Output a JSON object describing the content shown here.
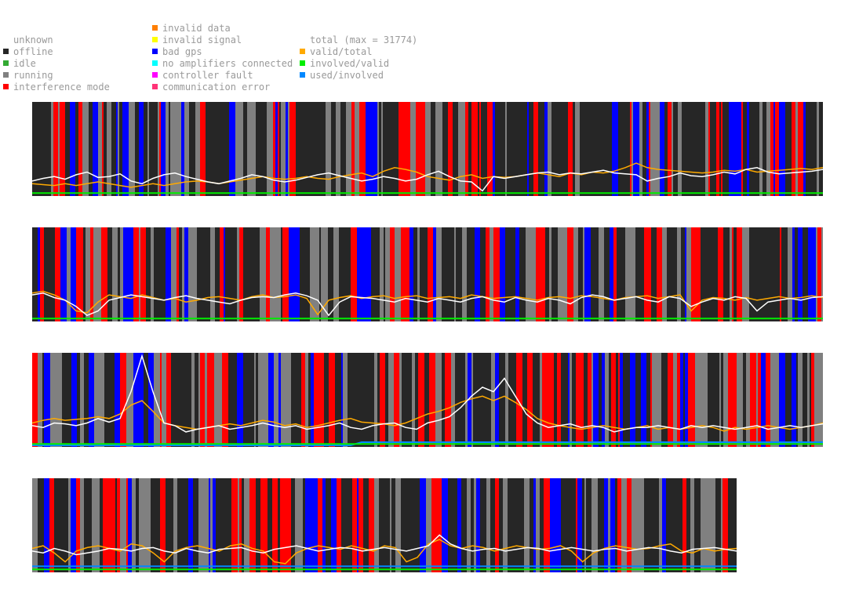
{
  "legend": {
    "status": [
      {
        "label": "unknown",
        "color": ""
      },
      {
        "label": "offline",
        "color": "#262626"
      },
      {
        "label": "idle",
        "color": "#33aa33"
      },
      {
        "label": "running",
        "color": "#808080"
      },
      {
        "label": "interference mode",
        "color": "#ff0000"
      }
    ],
    "faults": [
      {
        "label": "invalid data",
        "color": "#ff7f00"
      },
      {
        "label": "invalid signal",
        "color": "#ffff00"
      },
      {
        "label": "bad gps",
        "color": "#0000ff"
      },
      {
        "label": "no amplifiers connected",
        "color": "#00ffff"
      },
      {
        "label": "controller fault",
        "color": "#ff00ff"
      },
      {
        "label": "communication error",
        "color": "#ff3377"
      }
    ],
    "metrics": [
      {
        "label": "total (max = 31774)",
        "color": ""
      },
      {
        "label": "valid/total",
        "color": "#ffaa00"
      },
      {
        "label": "involved/valid",
        "color": "#00ee00"
      },
      {
        "label": "used/involved",
        "color": "#0088ff"
      }
    ]
  },
  "chart_data": {
    "type": "area",
    "description_series": [
      "total",
      "valid/total",
      "involved/valid",
      "used/involved"
    ],
    "status_colors": {
      "offline": "#262626",
      "running": "#808080",
      "interference mode": "#ff0000",
      "bad gps": "#0000ff"
    },
    "line_colors": {
      "total": "#ffffff",
      "valid/total": "#ffaa00",
      "involved/valid": "#00ee00",
      "used/involved": "#0088ff"
    },
    "ylim": [
      0,
      1
    ],
    "panels": [
      {
        "span_fraction": 1.0,
        "total": [
          0.15,
          0.18,
          0.2,
          0.17,
          0.22,
          0.25,
          0.19,
          0.2,
          0.23,
          0.15,
          0.12,
          0.18,
          0.22,
          0.24,
          0.2,
          0.17,
          0.14,
          0.12,
          0.15,
          0.18,
          0.22,
          0.2,
          0.16,
          0.14,
          0.16,
          0.19,
          0.22,
          0.24,
          0.21,
          0.18,
          0.15,
          0.17,
          0.2,
          0.18,
          0.15,
          0.17,
          0.22,
          0.26,
          0.2,
          0.15,
          0.14,
          0.04,
          0.2,
          0.18,
          0.2,
          0.22,
          0.24,
          0.25,
          0.22,
          0.24,
          0.23,
          0.25,
          0.27,
          0.24,
          0.23,
          0.22,
          0.15,
          0.18,
          0.2,
          0.24,
          0.21,
          0.2,
          0.22,
          0.25,
          0.23,
          0.28,
          0.3,
          0.25,
          0.23,
          0.24,
          0.25,
          0.26,
          0.28
        ],
        "valid_total": [
          0.12,
          0.11,
          0.1,
          0.12,
          0.1,
          0.12,
          0.14,
          0.12,
          0.1,
          0.08,
          0.1,
          0.12,
          0.1,
          0.12,
          0.14,
          0.15,
          0.14,
          0.12,
          0.14,
          0.16,
          0.18,
          0.2,
          0.18,
          0.17,
          0.18,
          0.2,
          0.18,
          0.17,
          0.2,
          0.22,
          0.24,
          0.2,
          0.26,
          0.3,
          0.28,
          0.25,
          0.2,
          0.18,
          0.16,
          0.2,
          0.22,
          0.18,
          0.2,
          0.19,
          0.2,
          0.22,
          0.24,
          0.22,
          0.2,
          0.24,
          0.22,
          0.25,
          0.24,
          0.26,
          0.3,
          0.35,
          0.3,
          0.28,
          0.27,
          0.26,
          0.25,
          0.24,
          0.25,
          0.27,
          0.26,
          0.28,
          0.25,
          0.26,
          0.27,
          0.28,
          0.29,
          0.28,
          0.3
        ],
        "involved_valid": [
          0.015,
          0.015,
          0.015,
          0.015,
          0.015,
          0.015,
          0.015,
          0.015,
          0.015,
          0.015,
          0.015,
          0.015,
          0.015,
          0.015,
          0.015,
          0.015,
          0.015,
          0.015,
          0.015,
          0.015,
          0.015,
          0.015,
          0.015,
          0.015,
          0.015,
          0.015,
          0.015,
          0.015,
          0.015,
          0.015,
          0.015,
          0.015,
          0.015,
          0.015,
          0.015,
          0.015,
          0.015,
          0.015,
          0.015,
          0.015,
          0.015,
          0.015,
          0.015,
          0.015,
          0.015,
          0.015,
          0.015,
          0.015,
          0.015,
          0.015,
          0.015,
          0.015,
          0.015,
          0.015,
          0.015,
          0.015,
          0.015,
          0.015,
          0.015,
          0.015,
          0.015,
          0.015,
          0.015,
          0.015,
          0.015,
          0.015,
          0.015,
          0.015,
          0.015,
          0.015,
          0.015,
          0.015,
          0.015
        ],
        "used_involved": []
      },
      {
        "span_fraction": 1.0,
        "total": [
          0.28,
          0.3,
          0.25,
          0.22,
          0.15,
          0.05,
          0.1,
          0.22,
          0.25,
          0.28,
          0.26,
          0.24,
          0.22,
          0.25,
          0.27,
          0.24,
          0.22,
          0.2,
          0.18,
          0.22,
          0.25,
          0.26,
          0.25,
          0.28,
          0.3,
          0.27,
          0.22,
          0.05,
          0.2,
          0.26,
          0.25,
          0.24,
          0.22,
          0.2,
          0.24,
          0.22,
          0.2,
          0.24,
          0.22,
          0.2,
          0.24,
          0.26,
          0.22,
          0.2,
          0.25,
          0.22,
          0.2,
          0.24,
          0.22,
          0.18,
          0.25,
          0.28,
          0.26,
          0.22,
          0.24,
          0.26,
          0.22,
          0.2,
          0.26,
          0.24,
          0.15,
          0.2,
          0.24,
          0.22,
          0.26,
          0.24,
          0.1,
          0.2,
          0.22,
          0.24,
          0.22,
          0.25,
          0.26
        ],
        "valid_total": [
          0.3,
          0.32,
          0.28,
          0.22,
          0.1,
          0.08,
          0.2,
          0.28,
          0.26,
          0.24,
          0.28,
          0.25,
          0.22,
          0.24,
          0.2,
          0.22,
          0.25,
          0.26,
          0.24,
          0.22,
          0.26,
          0.28,
          0.25,
          0.26,
          0.28,
          0.24,
          0.06,
          0.22,
          0.25,
          0.27,
          0.24,
          0.26,
          0.27,
          0.24,
          0.26,
          0.27,
          0.24,
          0.25,
          0.26,
          0.24,
          0.28,
          0.26,
          0.24,
          0.25,
          0.26,
          0.24,
          0.22,
          0.25,
          0.26,
          0.24,
          0.27,
          0.26,
          0.24,
          0.22,
          0.25,
          0.26,
          0.27,
          0.24,
          0.26,
          0.28,
          0.1,
          0.22,
          0.25,
          0.24,
          0.22,
          0.25,
          0.22,
          0.24,
          0.26,
          0.24,
          0.25,
          0.27,
          0.25
        ],
        "involved_valid": [
          0.015,
          0.015,
          0.015,
          0.015,
          0.015,
          0.015,
          0.015,
          0.015,
          0.015,
          0.015,
          0.015,
          0.015,
          0.015,
          0.015,
          0.015,
          0.015,
          0.015,
          0.015,
          0.015,
          0.015,
          0.015,
          0.015,
          0.015,
          0.015,
          0.015,
          0.015,
          0.015,
          0.015,
          0.015,
          0.015,
          0.015,
          0.015,
          0.015,
          0.015,
          0.015,
          0.015,
          0.015,
          0.015,
          0.015,
          0.015,
          0.015,
          0.015,
          0.015,
          0.015,
          0.015,
          0.015,
          0.015,
          0.015,
          0.015,
          0.015,
          0.015,
          0.015,
          0.015,
          0.015,
          0.015,
          0.015,
          0.015,
          0.015,
          0.015,
          0.015,
          0.015,
          0.015,
          0.015,
          0.015,
          0.015,
          0.015,
          0.015,
          0.015,
          0.015,
          0.015,
          0.015,
          0.015,
          0.015
        ],
        "used_involved": []
      },
      {
        "span_fraction": 1.0,
        "total": [
          0.22,
          0.2,
          0.25,
          0.24,
          0.22,
          0.25,
          0.3,
          0.26,
          0.3,
          0.6,
          1.0,
          0.6,
          0.25,
          0.22,
          0.15,
          0.18,
          0.2,
          0.22,
          0.18,
          0.2,
          0.22,
          0.25,
          0.22,
          0.2,
          0.22,
          0.18,
          0.2,
          0.22,
          0.25,
          0.2,
          0.18,
          0.22,
          0.24,
          0.25,
          0.2,
          0.18,
          0.25,
          0.28,
          0.32,
          0.42,
          0.55,
          0.65,
          0.6,
          0.75,
          0.55,
          0.35,
          0.25,
          0.2,
          0.22,
          0.24,
          0.2,
          0.22,
          0.2,
          0.15,
          0.18,
          0.2,
          0.2,
          0.22,
          0.2,
          0.18,
          0.22,
          0.2,
          0.22,
          0.2,
          0.18,
          0.2,
          0.22,
          0.18,
          0.2,
          0.22,
          0.2,
          0.22,
          0.24
        ],
        "valid_total": [
          0.25,
          0.28,
          0.3,
          0.28,
          0.29,
          0.3,
          0.32,
          0.3,
          0.35,
          0.45,
          0.5,
          0.38,
          0.25,
          0.22,
          0.2,
          0.18,
          0.2,
          0.22,
          0.24,
          0.22,
          0.25,
          0.28,
          0.26,
          0.22,
          0.24,
          0.2,
          0.22,
          0.25,
          0.28,
          0.3,
          0.26,
          0.25,
          0.24,
          0.22,
          0.25,
          0.3,
          0.35,
          0.38,
          0.42,
          0.48,
          0.52,
          0.55,
          0.5,
          0.55,
          0.48,
          0.4,
          0.3,
          0.25,
          0.22,
          0.2,
          0.18,
          0.2,
          0.22,
          0.2,
          0.18,
          0.2,
          0.22,
          0.18,
          0.2,
          0.18,
          0.2,
          0.22,
          0.2,
          0.16,
          0.2,
          0.18,
          0.2,
          0.22,
          0.2,
          0.18,
          0.2,
          0.22,
          0.25
        ],
        "involved_valid": [
          0.015,
          0.015,
          0.015,
          0.015,
          0.015,
          0.015,
          0.015,
          0.015,
          0.015,
          0.015,
          0.015,
          0.015,
          0.015,
          0.015,
          0.015,
          0.015,
          0.015,
          0.015,
          0.015,
          0.015,
          0.015,
          0.015,
          0.015,
          0.015,
          0.015,
          0.015,
          0.015,
          0.015,
          0.015,
          0.015,
          0.015,
          0.015,
          0.015,
          0.015,
          0.015,
          0.015,
          0.015,
          0.015,
          0.015,
          0.015,
          0.015,
          0.015,
          0.015,
          0.015,
          0.015,
          0.015,
          0.015,
          0.015,
          0.015,
          0.015,
          0.015,
          0.015,
          0.015,
          0.015,
          0.015,
          0.015,
          0.015,
          0.015,
          0.015,
          0.015,
          0.015,
          0.015,
          0.015,
          0.015,
          0.015,
          0.015,
          0.015,
          0.015,
          0.015,
          0.015,
          0.015,
          0.015,
          0.015
        ],
        "used_involved": [
          0.0,
          0.0,
          0.0,
          0.0,
          0.0,
          0.0,
          0.0,
          0.0,
          0.0,
          0.0,
          0.0,
          0.0,
          0.0,
          0.0,
          0.0,
          0.0,
          0.0,
          0.0,
          0.0,
          0.0,
          0.0,
          0.0,
          0.0,
          0.0,
          0.0,
          0.0,
          0.0,
          0.0,
          0.0,
          0.0,
          0.035,
          0.035,
          0.035,
          0.035,
          0.035,
          0.035,
          0.035,
          0.035,
          0.035,
          0.035,
          0.035,
          0.035,
          0.035,
          0.035,
          0.035,
          0.035,
          0.035,
          0.035,
          0.035,
          0.035,
          0.035,
          0.035,
          0.035,
          0.035,
          0.035,
          0.035,
          0.035,
          0.035,
          0.035,
          0.035,
          0.035,
          0.035,
          0.035,
          0.035,
          0.035,
          0.035,
          0.035,
          0.035,
          0.035,
          0.035,
          0.035,
          0.035,
          0.035
        ]
      },
      {
        "span_fraction": 0.892,
        "total": [
          0.22,
          0.2,
          0.25,
          0.22,
          0.18,
          0.2,
          0.22,
          0.25,
          0.24,
          0.22,
          0.25,
          0.26,
          0.22,
          0.2,
          0.25,
          0.22,
          0.2,
          0.24,
          0.25,
          0.26,
          0.22,
          0.2,
          0.24,
          0.26,
          0.28,
          0.25,
          0.22,
          0.24,
          0.26,
          0.25,
          0.22,
          0.24,
          0.26,
          0.24,
          0.22,
          0.25,
          0.28,
          0.4,
          0.3,
          0.25,
          0.22,
          0.24,
          0.25,
          0.22,
          0.24,
          0.26,
          0.25,
          0.22,
          0.24,
          0.26,
          0.24,
          0.22,
          0.24,
          0.25,
          0.22,
          0.24,
          0.26,
          0.25,
          0.22,
          0.2,
          0.24,
          0.25,
          0.26,
          0.24,
          0.22
        ],
        "valid_total": [
          0.25,
          0.28,
          0.2,
          0.1,
          0.22,
          0.26,
          0.28,
          0.25,
          0.22,
          0.3,
          0.28,
          0.2,
          0.1,
          0.22,
          0.26,
          0.28,
          0.25,
          0.22,
          0.28,
          0.3,
          0.25,
          0.22,
          0.1,
          0.08,
          0.2,
          0.25,
          0.28,
          0.26,
          0.24,
          0.28,
          0.25,
          0.22,
          0.28,
          0.26,
          0.1,
          0.15,
          0.3,
          0.35,
          0.28,
          0.25,
          0.28,
          0.26,
          0.22,
          0.25,
          0.28,
          0.26,
          0.24,
          0.25,
          0.28,
          0.22,
          0.1,
          0.2,
          0.25,
          0.28,
          0.26,
          0.24,
          0.25,
          0.28,
          0.3,
          0.22,
          0.2,
          0.25,
          0.22,
          0.24,
          0.25
        ],
        "involved_valid": [
          0.015,
          0.015,
          0.015,
          0.015,
          0.015,
          0.015,
          0.015,
          0.015,
          0.015,
          0.015,
          0.015,
          0.015,
          0.015,
          0.015,
          0.015,
          0.015,
          0.015,
          0.015,
          0.015,
          0.015,
          0.015,
          0.015,
          0.015,
          0.015,
          0.015,
          0.015,
          0.015,
          0.015,
          0.015,
          0.015,
          0.015,
          0.015,
          0.015,
          0.015,
          0.015,
          0.015,
          0.015,
          0.015,
          0.015,
          0.015,
          0.015,
          0.015,
          0.015,
          0.015,
          0.015,
          0.015,
          0.015,
          0.015,
          0.015,
          0.015,
          0.015,
          0.015,
          0.015,
          0.015,
          0.015,
          0.015,
          0.015,
          0.015,
          0.015,
          0.015,
          0.015,
          0.015,
          0.015,
          0.015,
          0.015
        ],
        "used_involved": [
          0.05,
          0.05,
          0.05,
          0.05,
          0.05,
          0.05,
          0.05,
          0.05,
          0.05,
          0.05,
          0.05,
          0.05,
          0.05,
          0.05,
          0.05,
          0.05,
          0.05,
          0.05,
          0.05,
          0.05,
          0.05,
          0.05,
          0.05,
          0.05,
          0.05,
          0.05,
          0.05,
          0.05,
          0.05,
          0.05,
          0.05,
          0.05,
          0.05,
          0.05,
          0.05,
          0.05,
          0.05,
          0.05,
          0.05,
          0.05,
          0.05,
          0.05,
          0.05,
          0.05,
          0.05,
          0.05,
          0.05,
          0.05,
          0.05,
          0.05,
          0.05,
          0.05,
          0.05,
          0.05,
          0.05,
          0.05,
          0.05,
          0.05,
          0.05,
          0.05,
          0.05,
          0.05,
          0.05,
          0.05,
          0.05
        ]
      }
    ]
  }
}
